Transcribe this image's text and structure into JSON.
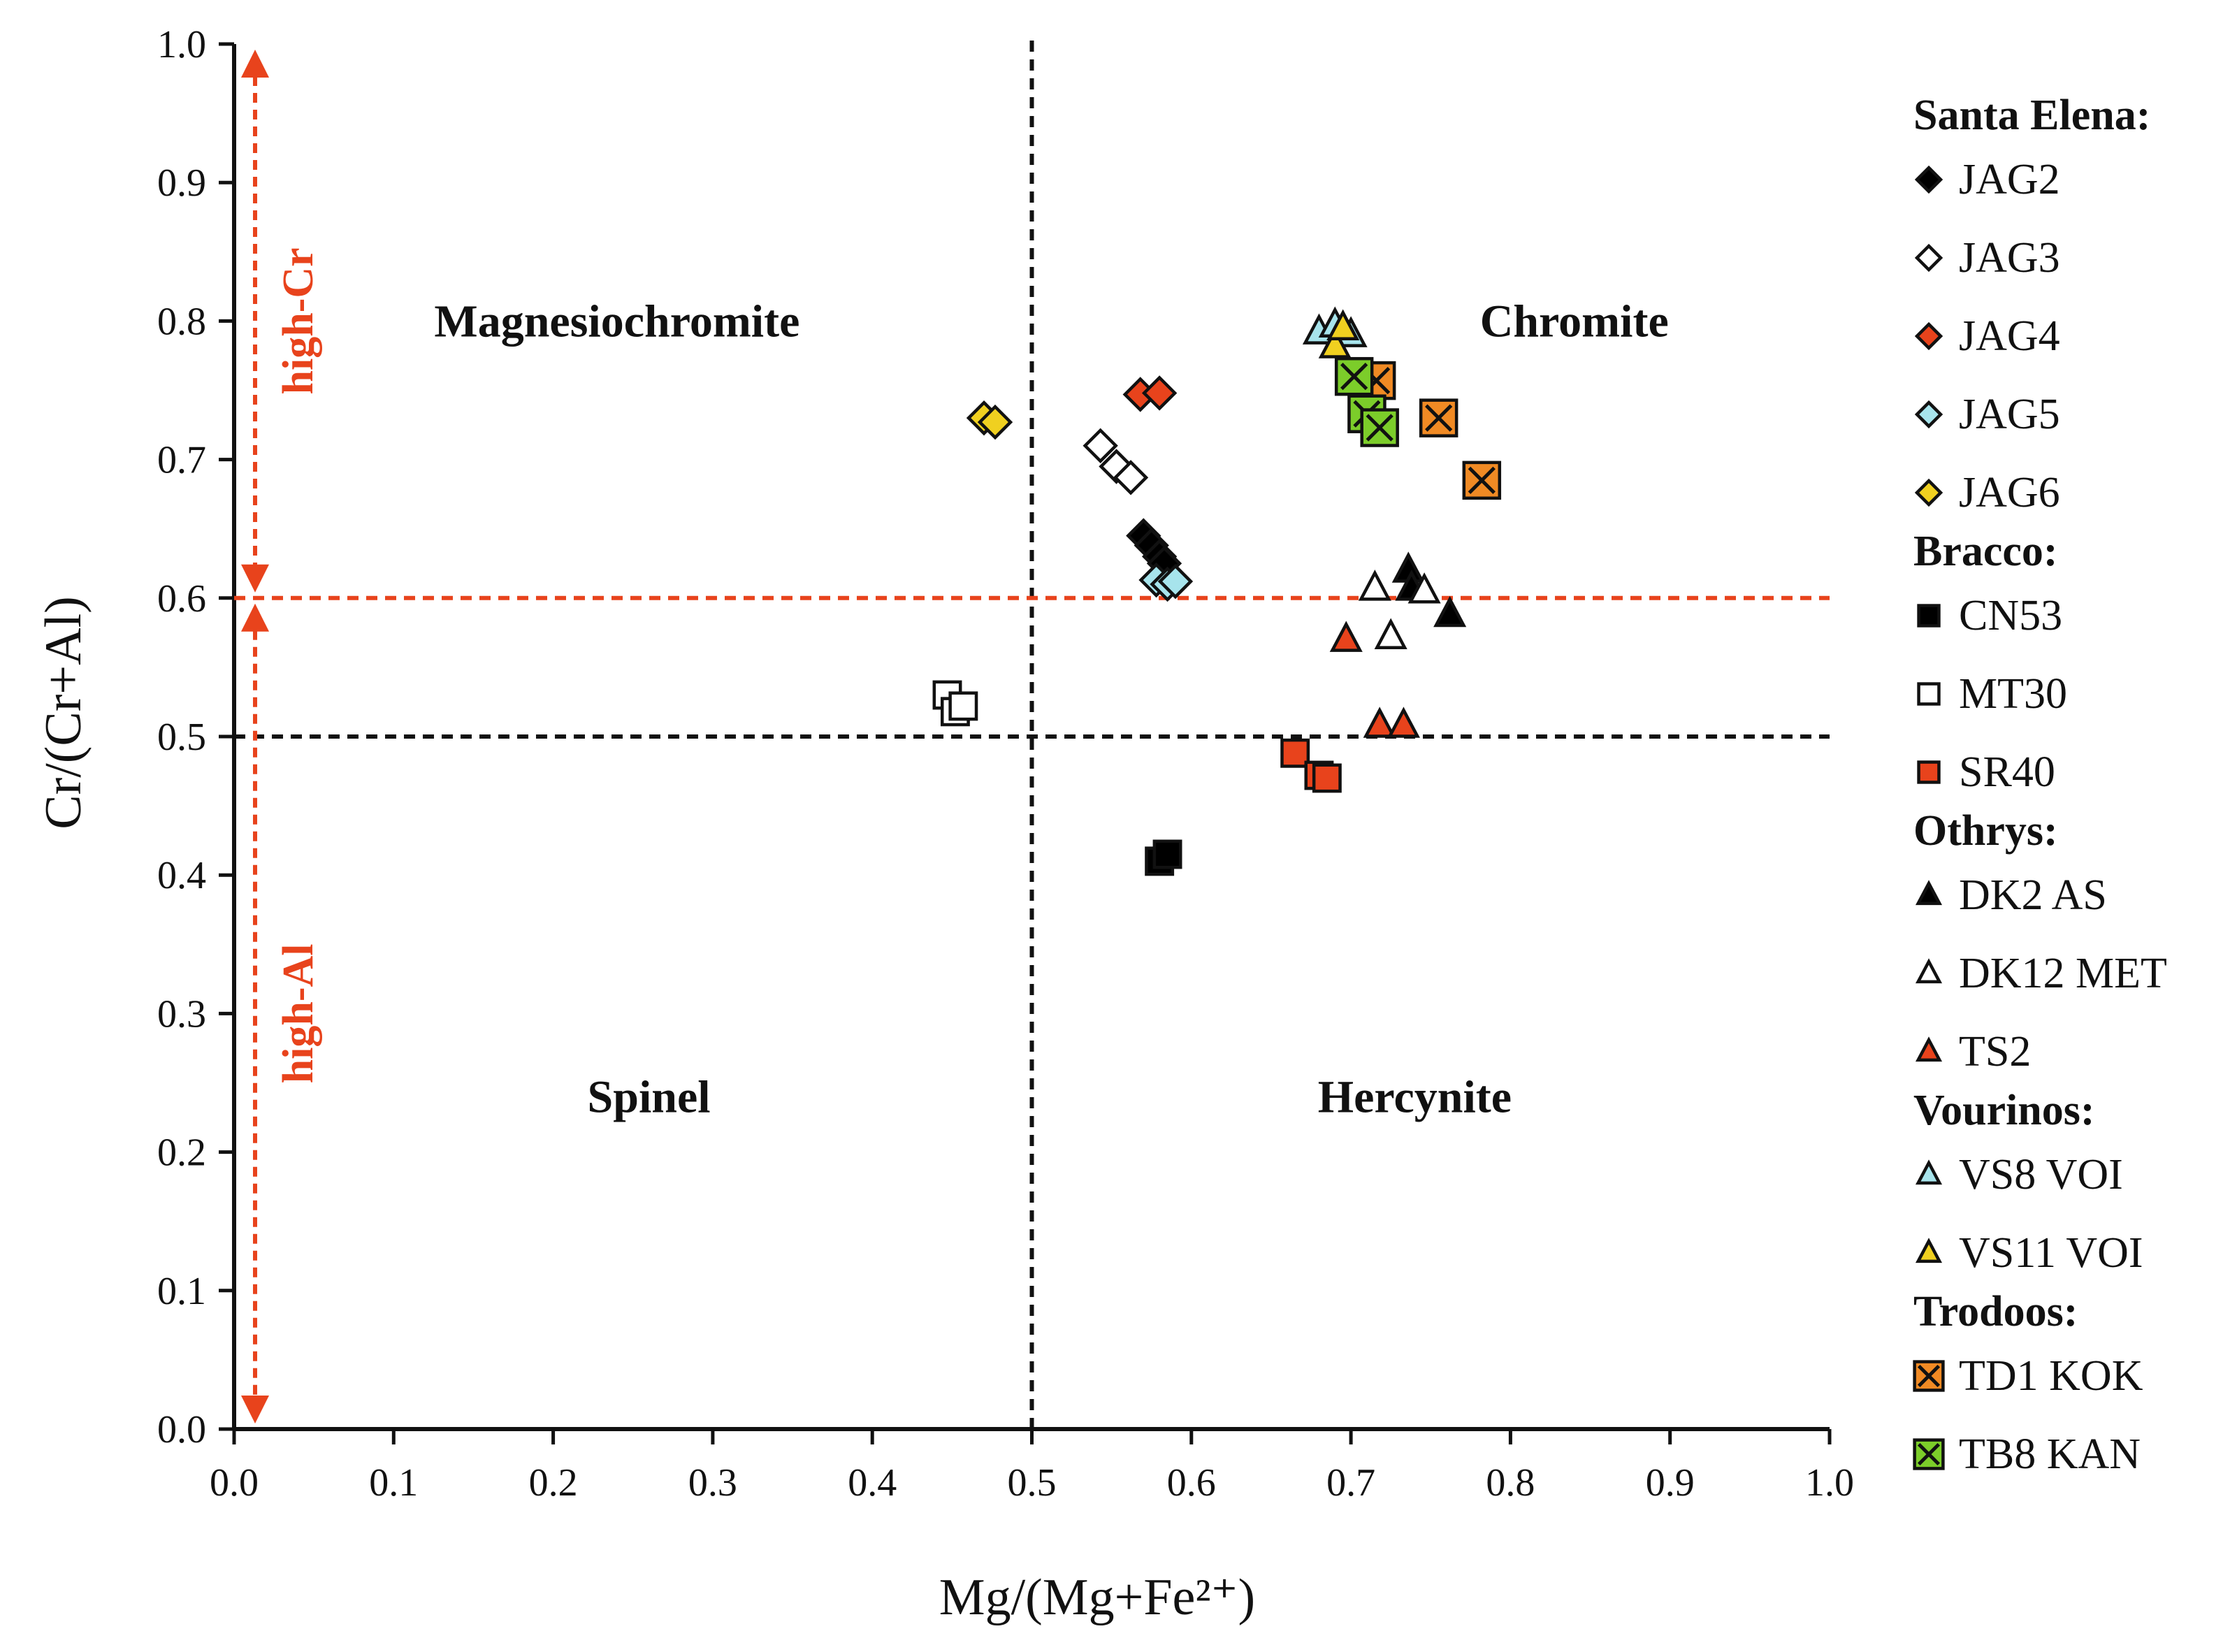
{
  "chart_data": {
    "type": "scatter",
    "xlabel": "Mg/(Mg+Fe²⁺)",
    "ylabel": "Cr/(Cr+Al)",
    "xlim": [
      0.0,
      1.0
    ],
    "ylim": [
      0.0,
      1.0
    ],
    "x_ticks": [
      "0.0",
      "0.1",
      "0.2",
      "0.3",
      "0.4",
      "0.5",
      "0.6",
      "0.7",
      "0.8",
      "0.9",
      "1.0"
    ],
    "y_ticks": [
      "0.0",
      "0.1",
      "0.2",
      "0.3",
      "0.4",
      "0.5",
      "0.6",
      "0.7",
      "0.8",
      "0.9",
      "1.0"
    ],
    "grid": false,
    "legend_position": "right",
    "reference_lines": [
      {
        "axis": "x",
        "value": 0.5,
        "color": "#111111",
        "style": "dashed"
      },
      {
        "axis": "y",
        "value": 0.5,
        "color": "#111111",
        "style": "dashed"
      },
      {
        "axis": "y",
        "value": 0.6,
        "color": "#e8431c",
        "style": "dashed"
      }
    ],
    "region_labels": [
      {
        "text": "Magnesiochromite",
        "x": 0.24,
        "y": 0.8
      },
      {
        "text": "Chromite",
        "x": 0.84,
        "y": 0.8
      },
      {
        "text": "Spinel",
        "x": 0.26,
        "y": 0.24
      },
      {
        "text": "Hercynite",
        "x": 0.74,
        "y": 0.24
      }
    ],
    "bands": [
      {
        "text": "high-Cr",
        "from": 0.6,
        "to": 1.0,
        "color": "#e8431c"
      },
      {
        "text": "high-Al",
        "from": 0.0,
        "to": 0.6,
        "color": "#e8431c"
      }
    ],
    "legend_groups": [
      {
        "title": "Santa Elena:",
        "series": [
          {
            "name": "JAG2",
            "marker": "diamond",
            "fill": "#000000",
            "cross": false,
            "points": [
              [
                0.57,
                0.645
              ],
              [
                0.575,
                0.638
              ],
              [
                0.58,
                0.63
              ],
              [
                0.583,
                0.625
              ]
            ]
          },
          {
            "name": "JAG3",
            "marker": "diamond",
            "fill": "#ffffff",
            "cross": false,
            "points": [
              [
                0.543,
                0.71
              ],
              [
                0.553,
                0.695
              ],
              [
                0.562,
                0.687
              ]
            ]
          },
          {
            "name": "JAG4",
            "marker": "diamond",
            "fill": "#e8431c",
            "cross": false,
            "points": [
              [
                0.568,
                0.747
              ],
              [
                0.58,
                0.748
              ]
            ]
          },
          {
            "name": "JAG5",
            "marker": "diamond",
            "fill": "#a7e4ec",
            "cross": false,
            "points": [
              [
                0.578,
                0.613
              ],
              [
                0.585,
                0.61
              ],
              [
                0.59,
                0.612
              ]
            ]
          },
          {
            "name": "JAG6",
            "marker": "diamond",
            "fill": "#f0d020",
            "cross": false,
            "points": [
              [
                0.47,
                0.73
              ],
              [
                0.477,
                0.727
              ]
            ]
          }
        ]
      },
      {
        "title": "Bracco:",
        "series": [
          {
            "name": "CN53",
            "marker": "square",
            "fill": "#000000",
            "cross": false,
            "points": [
              [
                0.58,
                0.41
              ],
              [
                0.585,
                0.415
              ]
            ]
          },
          {
            "name": "MT30",
            "marker": "square",
            "fill": "#ffffff",
            "cross": false,
            "points": [
              [
                0.447,
                0.53
              ],
              [
                0.452,
                0.518
              ],
              [
                0.457,
                0.522
              ]
            ]
          },
          {
            "name": "SR40",
            "marker": "square",
            "fill": "#e8431c",
            "cross": false,
            "points": [
              [
                0.665,
                0.488
              ],
              [
                0.68,
                0.472
              ],
              [
                0.685,
                0.47
              ]
            ]
          }
        ]
      },
      {
        "title": "Othrys:",
        "series": [
          {
            "name": "DK2 AS",
            "marker": "triangle",
            "fill": "#000000",
            "cross": false,
            "points": [
              [
                0.736,
                0.62
              ],
              [
                0.738,
                0.607
              ],
              [
                0.762,
                0.588
              ]
            ]
          },
          {
            "name": "DK12 MET",
            "marker": "triangle",
            "fill": "#ffffff",
            "cross": false,
            "points": [
              [
                0.715,
                0.607
              ],
              [
                0.725,
                0.572
              ],
              [
                0.746,
                0.605
              ]
            ]
          },
          {
            "name": "TS2",
            "marker": "triangle",
            "fill": "#e8431c",
            "cross": false,
            "points": [
              [
                0.697,
                0.57
              ],
              [
                0.718,
                0.508
              ],
              [
                0.733,
                0.508
              ]
            ]
          }
        ]
      },
      {
        "title": "Vourinos:",
        "series": [
          {
            "name": "VS8 VOI",
            "marker": "triangle",
            "fill": "#a7e4ec",
            "cross": false,
            "points": [
              [
                0.68,
                0.792
              ],
              [
                0.69,
                0.797
              ],
              [
                0.7,
                0.79
              ]
            ]
          },
          {
            "name": "VS11 VOI",
            "marker": "triangle",
            "fill": "#f0d020",
            "cross": false,
            "points": [
              [
                0.69,
                0.782
              ],
              [
                0.695,
                0.795
              ]
            ]
          }
        ]
      },
      {
        "title": "Trodoos:",
        "series": [
          {
            "name": "TD1 KOK",
            "marker": "square",
            "fill": "#f08a24",
            "cross": true,
            "points": [
              [
                0.716,
                0.757
              ],
              [
                0.755,
                0.73
              ],
              [
                0.782,
                0.685
              ]
            ]
          },
          {
            "name": "TB8 KAN",
            "marker": "square",
            "fill": "#7ccd2a",
            "cross": true,
            "points": [
              [
                0.702,
                0.76
              ],
              [
                0.71,
                0.733
              ],
              [
                0.718,
                0.723
              ]
            ]
          }
        ]
      }
    ]
  }
}
